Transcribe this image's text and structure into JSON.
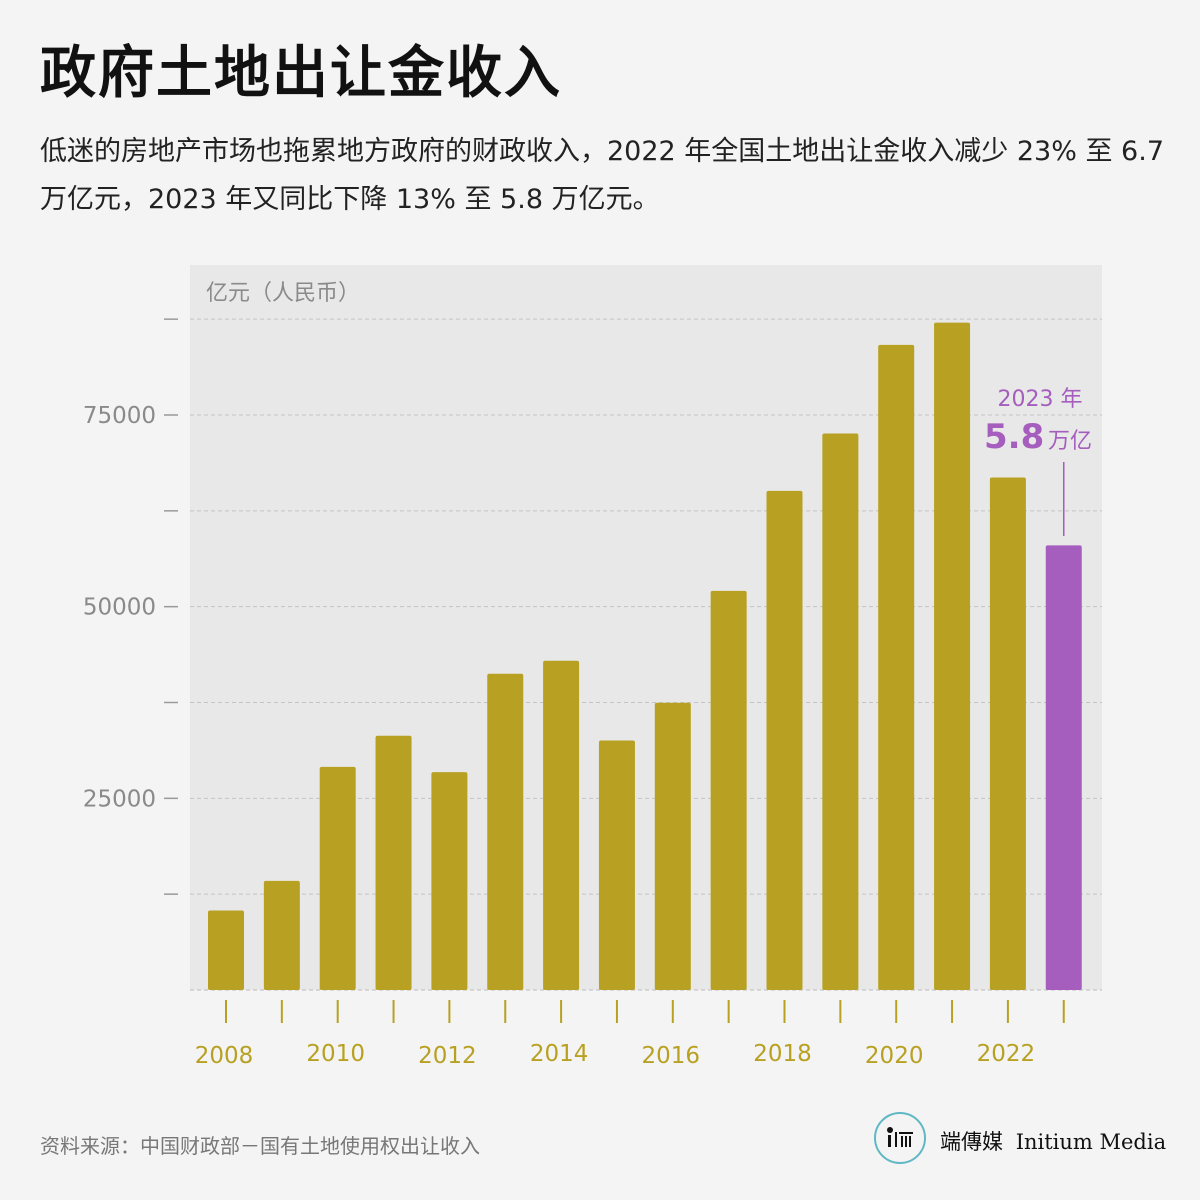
{
  "title": "政府土地出让金收入",
  "subtitle": "低迷的房地产市场也拖累地方政府的财政收入，2022 年全国土地出让金收入减少 23% 至 6.7 万亿元，2023 年又同比下降 13% 至 5.8 万亿元。",
  "source": "资料来源：中国财政部－国有土地使用权出让收入",
  "brand": {
    "chinese": "端傳媒",
    "english": "Initium Media",
    "logo_icon": "initium-logo-icon",
    "logo_color": "#5fb8c4"
  },
  "chart_data": {
    "type": "bar",
    "ylabel": "亿元（人民币）",
    "categories": [
      "2008",
      "2009",
      "2010",
      "2011",
      "2012",
      "2013",
      "2014",
      "2015",
      "2016",
      "2017",
      "2018",
      "2019",
      "2020",
      "2021",
      "2022",
      "2023"
    ],
    "x_tick_labels": [
      "2008",
      "",
      "2010",
      "",
      "2012",
      "",
      "2014",
      "",
      "2016",
      "",
      "2018",
      "",
      "2020",
      "",
      "2022",
      ""
    ],
    "values": [
      10375,
      14240,
      29110,
      33170,
      28420,
      41250,
      42940,
      32550,
      37460,
      52060,
      65100,
      72580,
      84140,
      87050,
      66850,
      57996
    ],
    "ylim": [
      0,
      88000
    ],
    "yticks": [
      12500,
      25000,
      37500,
      50000,
      62500,
      75000,
      87500
    ],
    "ytick_labels": [
      "",
      "25000",
      "",
      "50000",
      "",
      "75000",
      ""
    ],
    "grid": true,
    "colors": {
      "bar": "#b8a122",
      "highlight": "#a55dbe",
      "plot_bg": "#e8e8e8",
      "tick_label": "#b8a122"
    },
    "highlight_index": 15,
    "annotation": {
      "line1": "2023 年",
      "value": "5.8",
      "unit": "万亿"
    }
  }
}
